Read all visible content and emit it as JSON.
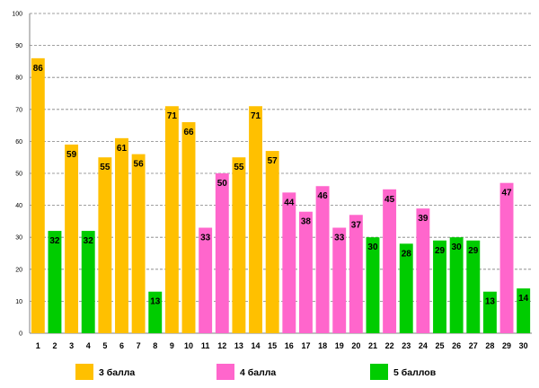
{
  "chart_data": {
    "type": "bar",
    "title": "",
    "xlabel": "",
    "ylabel": "",
    "ylim": [
      0,
      100
    ],
    "yticks": [
      0,
      10,
      20,
      30,
      40,
      50,
      60,
      70,
      80,
      90,
      100
    ],
    "grid": true,
    "categories": [
      "1",
      "2",
      "3",
      "4",
      "5",
      "6",
      "7",
      "8",
      "9",
      "10",
      "11",
      "12",
      "13",
      "14",
      "15",
      "16",
      "17",
      "18",
      "19",
      "20",
      "21",
      "22",
      "23",
      "24",
      "25",
      "26",
      "27",
      "28",
      "29",
      "30"
    ],
    "values": [
      86,
      32,
      59,
      32,
      55,
      61,
      56,
      13,
      71,
      66,
      33,
      50,
      55,
      71,
      57,
      44,
      38,
      46,
      33,
      37,
      30,
      45,
      28,
      39,
      29,
      30,
      29,
      13,
      47,
      14
    ],
    "groups": [
      "3",
      "5",
      "3",
      "5",
      "3",
      "3",
      "3",
      "5",
      "3",
      "3",
      "4",
      "4",
      "3",
      "3",
      "3",
      "4",
      "4",
      "4",
      "4",
      "4",
      "5",
      "4",
      "5",
      "4",
      "5",
      "5",
      "5",
      "5",
      "4",
      "5"
    ],
    "legend_position": "bottom",
    "legend": [
      {
        "key": "3",
        "label": "3 балла",
        "color": "#FFC000"
      },
      {
        "key": "4",
        "label": "4 балла",
        "color": "#FF66CC"
      },
      {
        "key": "5",
        "label": "5 баллов",
        "color": "#00CC00"
      }
    ]
  }
}
